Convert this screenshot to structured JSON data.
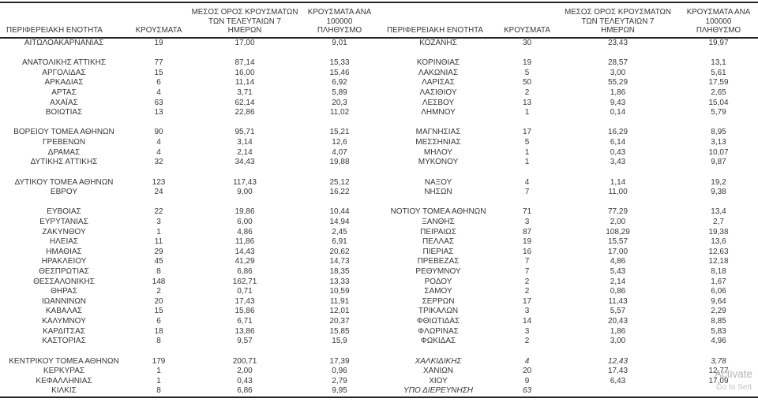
{
  "header": {
    "region": "ΠΕΡΙΦΕΡΕΙΑΚΗ ΕΝΟΤΗΤΑ",
    "cases": "ΚΡΟΥΣΜΑΤΑ",
    "avg7": "ΜΕΣΟΣ ΟΡΟΣ ΚΡΟΥΣΜΑΤΩΝ\nΤΩΝ ΤΕΛΕΥΤΑΙΩΝ 7\nΗΜΕΡΩΝ",
    "per100k": "ΚΡΟΥΣΜΑΤΑ ΑΝΑ 100000\nΠΛΗΘΥΣΜΟ"
  },
  "rows": [
    {
      "left": {
        "region": "ΑΙΤΩΛΟΑΚΑΡΝΑΝΙΑΣ",
        "cases": "19",
        "avg7": "17,00",
        "per100k": "9,01"
      },
      "right": {
        "region": "ΚΟΖΑΝΗΣ",
        "cases": "30",
        "avg7": "23,43",
        "per100k": "19,97"
      }
    },
    {
      "spacer": true
    },
    {
      "left": {
        "region": "ΑΝΑΤΟΛΙΚΗΣ ΑΤΤΙΚΗΣ",
        "cases": "77",
        "avg7": "87,14",
        "per100k": "15,33"
      },
      "right": {
        "region": "ΚΟΡΙΝΘΙΑΣ",
        "cases": "19",
        "avg7": "28,57",
        "per100k": "13,1"
      }
    },
    {
      "left": {
        "region": "ΑΡΓΟΛΙΔΑΣ",
        "cases": "15",
        "avg7": "16,00",
        "per100k": "15,46"
      },
      "right": {
        "region": "ΛΑΚΩΝΙΑΣ",
        "cases": "5",
        "avg7": "3,00",
        "per100k": "5,61"
      }
    },
    {
      "left": {
        "region": "ΑΡΚΑΔΙΑΣ",
        "cases": "6",
        "avg7": "11,14",
        "per100k": "6,92"
      },
      "right": {
        "region": "ΛΑΡΙΣΑΣ",
        "cases": "50",
        "avg7": "55,29",
        "per100k": "17,59"
      }
    },
    {
      "left": {
        "region": "ΑΡΤΑΣ",
        "cases": "4",
        "avg7": "3,71",
        "per100k": "5,89"
      },
      "right": {
        "region": "ΛΑΣΙΘΙΟΥ",
        "cases": "2",
        "avg7": "1,86",
        "per100k": "2,65"
      }
    },
    {
      "left": {
        "region": "ΑΧΑΪΑΣ",
        "cases": "63",
        "avg7": "62,14",
        "per100k": "20,3"
      },
      "right": {
        "region": "ΛΕΣΒΟΥ",
        "cases": "13",
        "avg7": "9,43",
        "per100k": "15,04"
      }
    },
    {
      "left": {
        "region": "ΒΟΙΩΤΙΑΣ",
        "cases": "13",
        "avg7": "22,86",
        "per100k": "11,02"
      },
      "right": {
        "region": "ΛΗΜΝΟΥ",
        "cases": "1",
        "avg7": "0,14",
        "per100k": "5,79"
      }
    },
    {
      "spacer": true
    },
    {
      "left": {
        "region": "ΒΟΡΕΙΟΥ ΤΟΜΕΑ ΑΘΗΝΩΝ",
        "cases": "90",
        "avg7": "95,71",
        "per100k": "15,21"
      },
      "right": {
        "region": "ΜΑΓΝΗΣΙΑΣ",
        "cases": "17",
        "avg7": "16,29",
        "per100k": "8,95"
      }
    },
    {
      "left": {
        "region": "ΓΡΕΒΕΝΩΝ",
        "cases": "4",
        "avg7": "3,14",
        "per100k": "12,6"
      },
      "right": {
        "region": "ΜΕΣΣΗΝΙΑΣ",
        "cases": "5",
        "avg7": "6,14",
        "per100k": "3,13"
      }
    },
    {
      "left": {
        "region": "ΔΡΑΜΑΣ",
        "cases": "4",
        "avg7": "2,14",
        "per100k": "4,07"
      },
      "right": {
        "region": "ΜΗΛΟΥ",
        "cases": "1",
        "avg7": "0,43",
        "per100k": "10,07"
      }
    },
    {
      "left": {
        "region": "ΔΥΤΙΚΗΣ ΑΤΤΙΚΗΣ",
        "cases": "32",
        "avg7": "34,43",
        "per100k": "19,88"
      },
      "right": {
        "region": "ΜΥΚΟΝΟΥ",
        "cases": "1",
        "avg7": "3,43",
        "per100k": "9,87"
      }
    },
    {
      "spacer": true
    },
    {
      "left": {
        "region": "ΔΥΤΙΚΟΥ ΤΟΜΕΑ ΑΘΗΝΩΝ",
        "cases": "123",
        "avg7": "117,43",
        "per100k": "25,12"
      },
      "right": {
        "region": "ΝΑΞΟΥ",
        "cases": "4",
        "avg7": "1,14",
        "per100k": "19,2"
      }
    },
    {
      "left": {
        "region": "ΕΒΡΟΥ",
        "cases": "24",
        "avg7": "9,00",
        "per100k": "16,22"
      },
      "right": {
        "region": "ΝΗΣΩΝ",
        "cases": "7",
        "avg7": "11,00",
        "per100k": "9,38"
      }
    },
    {
      "spacer": true
    },
    {
      "left": {
        "region": "ΕΥΒΟΙΑΣ",
        "cases": "22",
        "avg7": "19,86",
        "per100k": "10,44"
      },
      "right": {
        "region": "ΝΟΤΙΟΥ ΤΟΜΕΑ ΑΘΗΝΩΝ",
        "cases": "71",
        "avg7": "77,29",
        "per100k": "13,4"
      }
    },
    {
      "left": {
        "region": "ΕΥΡΥΤΑΝΙΑΣ",
        "cases": "3",
        "avg7": "6,00",
        "per100k": "14,94"
      },
      "right": {
        "region": "ΞΑΝΘΗΣ",
        "cases": "3",
        "avg7": "2,00",
        "per100k": "2,7"
      }
    },
    {
      "left": {
        "region": "ΖΑΚΥΝΘΟΥ",
        "cases": "1",
        "avg7": "4,86",
        "per100k": "2,45"
      },
      "right": {
        "region": "ΠΕΙΡΑΙΩΣ",
        "cases": "87",
        "avg7": "108,29",
        "per100k": "19,38"
      }
    },
    {
      "left": {
        "region": "ΗΛΕΙΑΣ",
        "cases": "11",
        "avg7": "11,86",
        "per100k": "6,91"
      },
      "right": {
        "region": "ΠΕΛΛΑΣ",
        "cases": "19",
        "avg7": "15,57",
        "per100k": "13,6"
      }
    },
    {
      "left": {
        "region": "ΗΜΑΘΙΑΣ",
        "cases": "29",
        "avg7": "14,43",
        "per100k": "20,62"
      },
      "right": {
        "region": "ΠΙΕΡΙΑΣ",
        "cases": "16",
        "avg7": "17,00",
        "per100k": "12,63"
      }
    },
    {
      "left": {
        "region": "ΗΡΑΚΛΕΙΟΥ",
        "cases": "45",
        "avg7": "41,29",
        "per100k": "14,73"
      },
      "right": {
        "region": "ΠΡΕΒΕΖΑΣ",
        "cases": "7",
        "avg7": "4,86",
        "per100k": "12,18"
      }
    },
    {
      "left": {
        "region": "ΘΕΣΠΡΩΤΙΑΣ",
        "cases": "8",
        "avg7": "6,86",
        "per100k": "18,35"
      },
      "right": {
        "region": "ΡΕΘΥΜΝΟΥ",
        "cases": "7",
        "avg7": "5,43",
        "per100k": "8,18"
      }
    },
    {
      "left": {
        "region": "ΘΕΣΣΑΛΟΝΙΚΗΣ",
        "cases": "148",
        "avg7": "162,71",
        "per100k": "13,33"
      },
      "right": {
        "region": "ΡΟΔΟΥ",
        "cases": "2",
        "avg7": "2,14",
        "per100k": "1,67"
      }
    },
    {
      "left": {
        "region": "ΘΗΡΑΣ",
        "cases": "2",
        "avg7": "0,71",
        "per100k": "10,59"
      },
      "right": {
        "region": "ΣΑΜΟΥ",
        "cases": "2",
        "avg7": "0,86",
        "per100k": "6,06"
      }
    },
    {
      "left": {
        "region": "ΙΩΑΝΝΙΝΩΝ",
        "cases": "20",
        "avg7": "17,43",
        "per100k": "11,91"
      },
      "right": {
        "region": "ΣΕΡΡΩΝ",
        "cases": "17",
        "avg7": "11,43",
        "per100k": "9,64"
      }
    },
    {
      "left": {
        "region": "ΚΑΒΑΛΑΣ",
        "cases": "15",
        "avg7": "15,86",
        "per100k": "12,01"
      },
      "right": {
        "region": "ΤΡΙΚΑΛΩΝ",
        "cases": "3",
        "avg7": "5,57",
        "per100k": "2,29"
      }
    },
    {
      "left": {
        "region": "ΚΑΛΥΜΝΟΥ",
        "cases": "6",
        "avg7": "6,71",
        "per100k": "20,37"
      },
      "right": {
        "region": "ΦΘΙΩΤΙΔΑΣ",
        "cases": "14",
        "avg7": "20,43",
        "per100k": "8,85"
      }
    },
    {
      "left": {
        "region": "ΚΑΡΔΙΤΣΑΣ",
        "cases": "18",
        "avg7": "13,86",
        "per100k": "15,85"
      },
      "right": {
        "region": "ΦΛΩΡΙΝΑΣ",
        "cases": "3",
        "avg7": "1,86",
        "per100k": "5,83"
      }
    },
    {
      "left": {
        "region": "ΚΑΣΤΟΡΙΑΣ",
        "cases": "8",
        "avg7": "9,57",
        "per100k": "15,9"
      },
      "right": {
        "region": "ΦΩΚΙΔΑΣ",
        "cases": "2",
        "avg7": "3,00",
        "per100k": "4,96"
      }
    },
    {
      "spacer": true
    },
    {
      "left": {
        "region": "ΚΕΝΤΡΙΚΟΥ ΤΟΜΕΑ ΑΘΗΝΩΝ",
        "cases": "179",
        "avg7": "200,71",
        "per100k": "17,39"
      },
      "right": {
        "region": "ΧΑΛΚΙΔΙΚΗΣ",
        "cases": "4",
        "avg7": "12,43",
        "per100k": "3,78",
        "italic": true
      }
    },
    {
      "left": {
        "region": "ΚΕΡΚΥΡΑΣ",
        "cases": "1",
        "avg7": "2,00",
        "per100k": "0,96"
      },
      "right": {
        "region": "ΧΑΝΙΩΝ",
        "cases": "20",
        "avg7": "17,43",
        "per100k": "12,77"
      }
    },
    {
      "left": {
        "region": "ΚΕΦΑΛΛΗΝΙΑΣ",
        "cases": "1",
        "avg7": "0,43",
        "per100k": "2,79"
      },
      "right": {
        "region": "ΧΙΟΥ",
        "cases": "9",
        "avg7": "6,43",
        "per100k": "17,09"
      }
    },
    {
      "left": {
        "region": "ΚΙΛΚΙΣ",
        "cases": "8",
        "avg7": "6,86",
        "per100k": "9,95"
      },
      "right": {
        "region": "ΥΠΟ ΔΙΕΡΕΥΝΗΣΗ",
        "cases": "63",
        "avg7": "",
        "per100k": "",
        "italic": true
      }
    }
  ],
  "watermark": {
    "line1": "Activate",
    "line2": "Go to Sett"
  },
  "colors": {
    "text": "#373737",
    "rule": "#262626",
    "watermark": "#b3b3b3"
  }
}
